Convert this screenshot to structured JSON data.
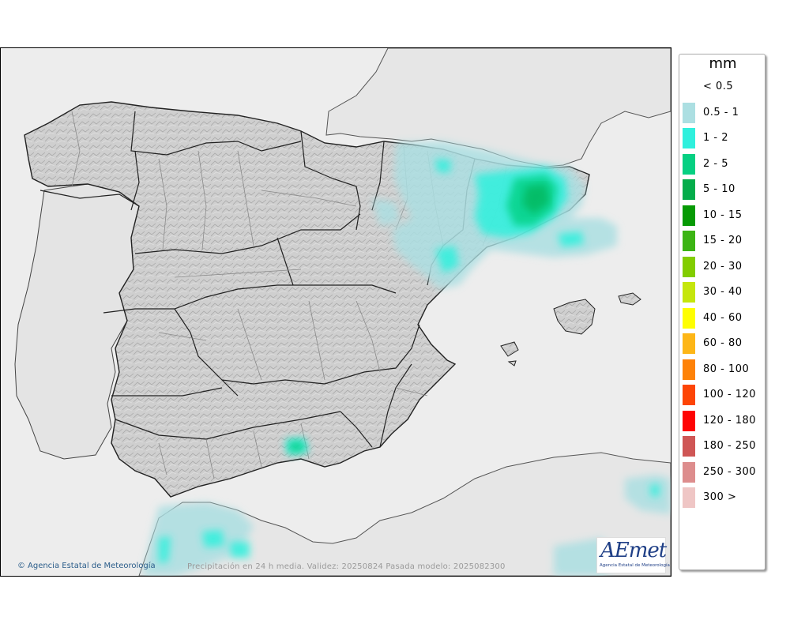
{
  "map": {
    "title": "",
    "colors": {
      "sea": "#ededed",
      "land": "#cfcfcf",
      "border": "#222222",
      "region_border": "#8a8a8a"
    }
  },
  "legend": {
    "unit": "mm",
    "items": [
      {
        "label": "< 0.5",
        "color": "#ffffff"
      },
      {
        "label": "0.5 - 1",
        "color": "#acdfe2"
      },
      {
        "label": "1 - 2",
        "color": "#2ff0dd"
      },
      {
        "label": "2 - 5",
        "color": "#06d082"
      },
      {
        "label": "5 - 10",
        "color": "#04ad4b"
      },
      {
        "label": "10 - 15",
        "color": "#079a05"
      },
      {
        "label": "15 - 20",
        "color": "#3cb414"
      },
      {
        "label": "20 - 30",
        "color": "#82cd00"
      },
      {
        "label": "30 - 40",
        "color": "#c5e60c"
      },
      {
        "label": "40 - 60",
        "color": "#fefe01"
      },
      {
        "label": "60 - 80",
        "color": "#fdb617"
      },
      {
        "label": "80 - 100",
        "color": "#fe8208"
      },
      {
        "label": "100 - 120",
        "color": "#fd4506"
      },
      {
        "label": "120 - 180",
        "color": "#fe0404"
      },
      {
        "label": "180 - 250",
        "color": "#cf5655"
      },
      {
        "label": "250 - 300",
        "color": "#dd8d8d"
      },
      {
        "label": "300 >",
        "color": "#efc6c5"
      }
    ]
  },
  "footer": {
    "copyright_symbol": "©",
    "copyright": "Agencia Estatal de Meteorología",
    "validity": "Precipitación en 24 h media. Validez: 20250824 Pasada modelo: 2025082300"
  },
  "logo": {
    "text": "AEmet",
    "subtitle": "Agencia Estatal de Meteorología"
  }
}
